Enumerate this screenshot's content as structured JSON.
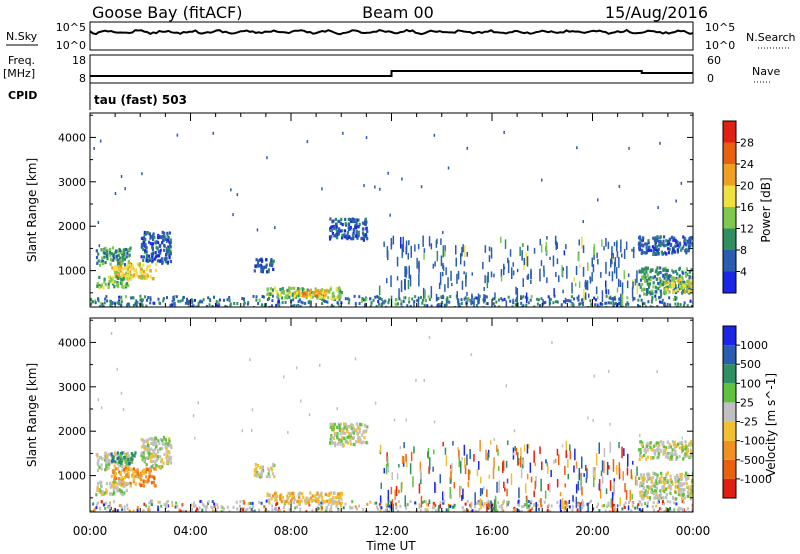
{
  "header": {
    "station": "Goose Bay (fitACF)",
    "beam": "Beam 00",
    "date": "15/Aug/2016"
  },
  "panels": {
    "nsky": {
      "left_label": "N.Sky",
      "left_ticks": [
        "10^5",
        "10^0"
      ],
      "right_ticks": [
        "10^5",
        "10^0"
      ],
      "right_label": "N.Search"
    },
    "freq": {
      "left_label_top": "Freq.",
      "left_label_bottom": "[MHz]",
      "left_ticks": [
        "18",
        "8"
      ],
      "right_ticks": [
        "60",
        "0"
      ],
      "right_label": "Nave"
    },
    "cpid": {
      "label": "CPID",
      "text": "tau (fast) 503"
    }
  },
  "chart_data": [
    {
      "type": "heatmap",
      "name": "power",
      "ylabel": "Slant Range [km]",
      "yticks": [
        1000,
        2000,
        3000,
        4000
      ],
      "ylim": [
        180,
        4550
      ],
      "xlim": [
        0,
        24
      ],
      "colorbar": {
        "label": "Power [dB]",
        "ticks": [
          "4",
          "8",
          "12",
          "16",
          "20",
          "24",
          "28"
        ],
        "colors": [
          "#1a28e6",
          "#2a5cb0",
          "#2f8f60",
          "#7ec850",
          "#f0e040",
          "#f0a020",
          "#e86010",
          "#e02010"
        ]
      },
      "regions": [
        {
          "t0": 0.2,
          "t1": 1.6,
          "r0": 1150,
          "r1": 1550,
          "level": 2
        },
        {
          "t0": 0.8,
          "t1": 2.6,
          "r0": 850,
          "r1": 1200,
          "level": 4
        },
        {
          "t0": 0.2,
          "t1": 1.5,
          "r0": 650,
          "r1": 900,
          "level": 3
        },
        {
          "t0": 2.0,
          "t1": 3.2,
          "r0": 1200,
          "r1": 1900,
          "level": 1
        },
        {
          "t0": 6.5,
          "t1": 7.3,
          "r0": 1000,
          "r1": 1300,
          "level": 1
        },
        {
          "t0": 7.0,
          "t1": 10.0,
          "r0": 400,
          "r1": 650,
          "level": 3
        },
        {
          "t0": 8.0,
          "t1": 9.4,
          "r0": 450,
          "r1": 600,
          "level": 5
        },
        {
          "t0": 9.5,
          "t1": 11.0,
          "r0": 1700,
          "r1": 2200,
          "level": 1
        },
        {
          "t0": 21.8,
          "t1": 24.0,
          "r0": 1400,
          "r1": 1800,
          "level": 1
        },
        {
          "t0": 21.8,
          "t1": 24.0,
          "r0": 500,
          "r1": 1100,
          "level": 2
        },
        {
          "t0": 22.8,
          "t1": 24.0,
          "r0": 550,
          "r1": 850,
          "level": 4
        }
      ]
    },
    {
      "type": "heatmap",
      "name": "velocity",
      "ylabel": "Slant Range [km]",
      "yticks": [
        1000,
        2000,
        3000,
        4000
      ],
      "ylim": [
        180,
        4550
      ],
      "xlim": [
        0,
        24
      ],
      "xticks": [
        "00:00",
        "04:00",
        "08:00",
        "12:00",
        "16:00",
        "20:00",
        "00:00"
      ],
      "xlabel": "Time UT",
      "colorbar": {
        "label": "Velocity [m s^-1]",
        "ticks": [
          "1000",
          "500",
          "100",
          "25",
          "-25",
          "-100",
          "-500",
          "-1000"
        ],
        "colors": [
          "#1a28e6",
          "#2a5cb0",
          "#2f8f60",
          "#60c040",
          "#c0c0c0",
          "#f0c030",
          "#f09020",
          "#e86010",
          "#e02010"
        ]
      },
      "regions": [
        {
          "t0": 0.2,
          "t1": 1.6,
          "r0": 1150,
          "r1": 1550,
          "level": 4
        },
        {
          "t0": 0.8,
          "t1": 1.8,
          "r0": 1300,
          "r1": 1550,
          "level": 2
        },
        {
          "t0": 0.8,
          "t1": 2.6,
          "r0": 800,
          "r1": 1200,
          "level": 6
        },
        {
          "t0": 0.2,
          "t1": 1.5,
          "r0": 600,
          "r1": 900,
          "level": 4
        },
        {
          "t0": 2.0,
          "t1": 3.2,
          "r0": 1200,
          "r1": 1900,
          "level": 4
        },
        {
          "t0": 6.5,
          "t1": 7.3,
          "r0": 1000,
          "r1": 1300,
          "level": 4
        },
        {
          "t0": 7.0,
          "t1": 10.0,
          "r0": 400,
          "r1": 650,
          "level": 5
        },
        {
          "t0": 9.5,
          "t1": 11.0,
          "r0": 1700,
          "r1": 2200,
          "level": 4
        },
        {
          "t0": 21.8,
          "t1": 24.0,
          "r0": 1400,
          "r1": 1800,
          "level": 4
        },
        {
          "t0": 21.8,
          "t1": 24.0,
          "r0": 500,
          "r1": 1100,
          "level": 4
        }
      ]
    }
  ]
}
